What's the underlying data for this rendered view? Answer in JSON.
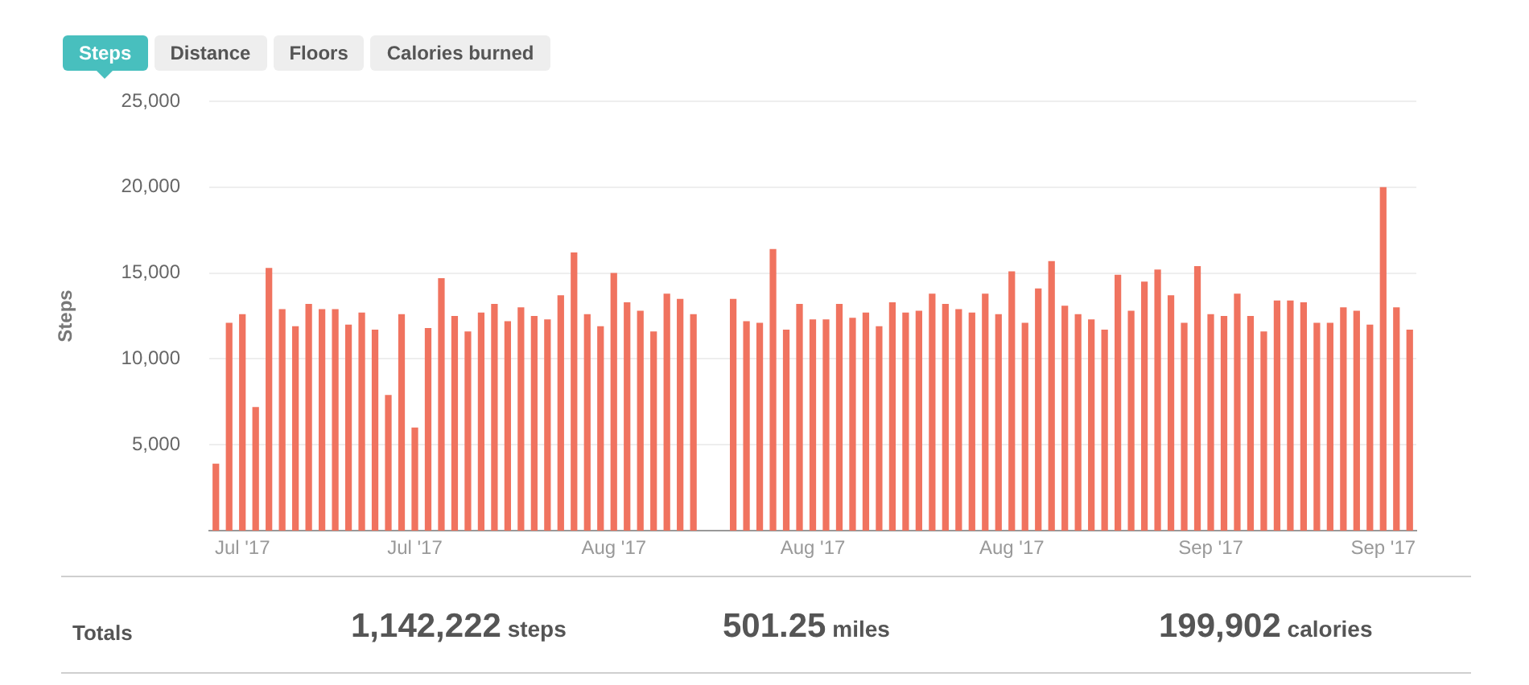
{
  "chart_data": {
    "type": "bar",
    "ylabel": "Steps",
    "categories": [
      null,
      null,
      "Jul '17",
      null,
      null,
      null,
      null,
      null,
      null,
      null,
      null,
      null,
      null,
      null,
      null,
      "Jul '17",
      null,
      null,
      null,
      null,
      null,
      null,
      null,
      null,
      null,
      null,
      null,
      null,
      null,
      null,
      "Aug '17",
      null,
      null,
      null,
      null,
      null,
      null,
      null,
      null,
      null,
      null,
      null,
      null,
      null,
      null,
      "Aug '17",
      null,
      null,
      null,
      null,
      null,
      null,
      null,
      null,
      null,
      null,
      null,
      null,
      null,
      null,
      "Aug '17",
      null,
      null,
      null,
      null,
      null,
      null,
      null,
      null,
      null,
      null,
      null,
      null,
      null,
      null,
      "Sep '17",
      null,
      null,
      null,
      null,
      null,
      null,
      null,
      null,
      null,
      null,
      null,
      null,
      "Sep '17",
      null,
      null
    ],
    "values": [
      3900,
      12100,
      12600,
      7200,
      15300,
      12900,
      11900,
      13200,
      12900,
      12900,
      12000,
      12700,
      11700,
      7900,
      12600,
      6000,
      11800,
      14700,
      12500,
      11600,
      12700,
      13200,
      12200,
      13000,
      12500,
      12300,
      13700,
      16200,
      12600,
      11900,
      15000,
      13300,
      12800,
      11600,
      13800,
      13500,
      12600,
      0,
      null,
      13500,
      12200,
      12100,
      16400,
      11700,
      13200,
      12300,
      12300,
      13200,
      12400,
      12700,
      11900,
      13300,
      12700,
      12800,
      13800,
      13200,
      12900,
      12700,
      13800,
      12600,
      15100,
      12100,
      14100,
      15700,
      13100,
      12600,
      12300,
      11700,
      14900,
      12800,
      14500,
      15200,
      13700,
      12100,
      15400,
      12600,
      12500,
      13800,
      12500,
      11600,
      13400,
      13400,
      13300,
      12100,
      12100,
      13000,
      12800,
      12000,
      20000,
      13000,
      11700
    ],
    "color": "#f0735f",
    "ylim": [
      0,
      25000
    ],
    "yticks": [
      {
        "value": 5000,
        "label": "5,000"
      },
      {
        "value": 10000,
        "label": "10,000"
      },
      {
        "value": 15000,
        "label": "15,000"
      },
      {
        "value": 20000,
        "label": "20,000"
      },
      {
        "value": 25000,
        "label": "25,000"
      }
    ],
    "grid": "y",
    "legend": false,
    "annotations": [
      "Steps",
      "Distance",
      "Floors",
      "Calories burned",
      "Totals",
      "1,142,222 steps",
      "501.25 miles",
      "199,902 calories"
    ]
  }
}
